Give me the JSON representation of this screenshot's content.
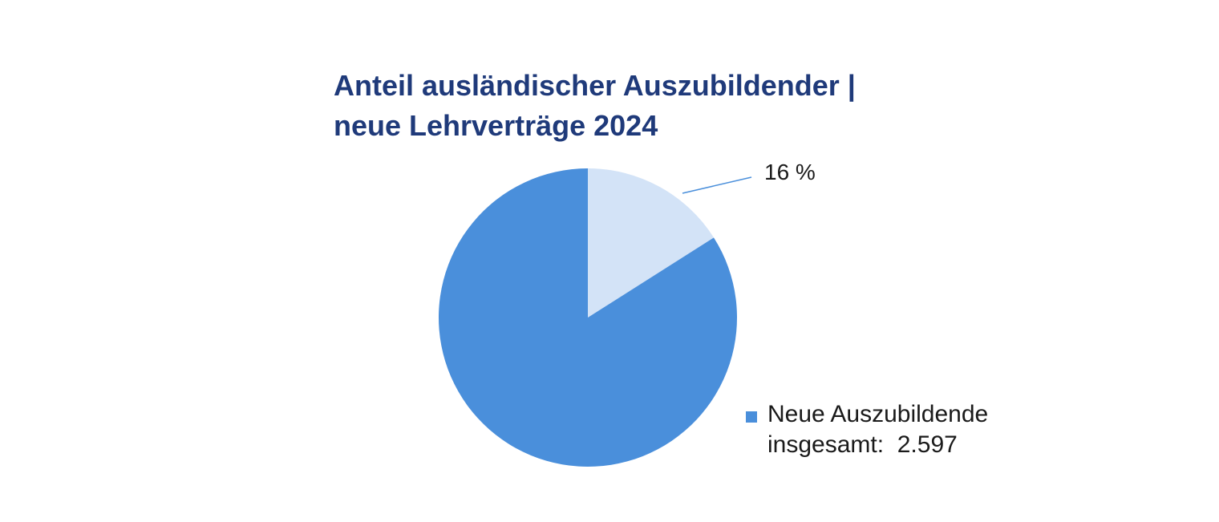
{
  "chart_data": {
    "type": "pie",
    "title_lines": [
      "Anteil ausländischer Auszubildender |",
      "neue Lehrverträge 2024"
    ],
    "slices": [
      {
        "value": 16,
        "color": "#d3e3f7"
      },
      {
        "value": 84,
        "color": "#4a8fdb"
      }
    ],
    "data_labels": [
      "16 %"
    ],
    "legend": {
      "color": "#4a8fdb",
      "label_line1": "Neue Auszubildende",
      "label_line2_prefix": "insgesamt:",
      "label_line2_value": "2.597"
    },
    "leader_line_color": "#4a8fdb"
  }
}
